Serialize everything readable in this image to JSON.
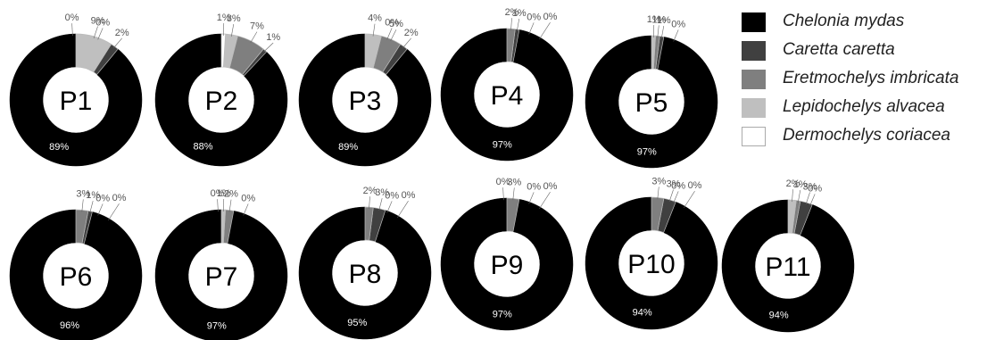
{
  "chart_data": {
    "type": "pie",
    "series": [
      {
        "name": "Chelonia mydas",
        "color": "#000000"
      },
      {
        "name": "Caretta caretta",
        "color": "#404040"
      },
      {
        "name": "Eretmochelys imbricata",
        "color": "#7f7f7f"
      },
      {
        "name": "Lepidochelys alvacea",
        "color": "#bfbfbf"
      },
      {
        "name": "Dermochelys coriacea",
        "color": "#ffffff"
      }
    ],
    "charts": [
      {
        "label": "P1",
        "values": [
          89,
          2,
          0,
          9,
          0
        ],
        "labels": [
          "89%",
          "2%",
          "0%",
          "9%",
          "0%"
        ]
      },
      {
        "label": "P2",
        "values": [
          88,
          1,
          7,
          3,
          1
        ],
        "labels": [
          "88%",
          "1%",
          "7%",
          "3%",
          "1%"
        ]
      },
      {
        "label": "P3",
        "values": [
          89,
          2,
          5,
          4,
          0
        ],
        "labels": [
          "89%",
          "2%",
          "5%",
          "4%",
          "0%"
        ]
      },
      {
        "label": "P4",
        "values": [
          97,
          1,
          2,
          0,
          0
        ],
        "labels": [
          "97%",
          "1%",
          "2%",
          "0%",
          "0%"
        ]
      },
      {
        "label": "P5",
        "values": [
          97,
          1,
          1,
          1,
          0
        ],
        "labels": [
          "97%",
          "1%",
          "1%",
          "1%",
          "0%"
        ]
      },
      {
        "label": "P6",
        "values": [
          96,
          1,
          3,
          0,
          0
        ],
        "labels": [
          "96%",
          "1%",
          "3%",
          "0%",
          "0%"
        ]
      },
      {
        "label": "P7",
        "values": [
          97,
          0,
          2,
          1,
          0
        ],
        "labels": [
          "97%",
          "0%",
          "2%",
          "1%",
          "0%"
        ]
      },
      {
        "label": "P8",
        "values": [
          95,
          3,
          2,
          0,
          0
        ],
        "labels": [
          "95%",
          "3%",
          "2%",
          "0%",
          "0%"
        ]
      },
      {
        "label": "P9",
        "values": [
          97,
          0,
          3,
          0,
          0
        ],
        "labels": [
          "97%",
          "0%",
          "3%",
          "0%",
          "0%"
        ]
      },
      {
        "label": "P10",
        "values": [
          94,
          3,
          3,
          0,
          0
        ],
        "labels": [
          "94%",
          "3%",
          "3%",
          "0%",
          "0%"
        ]
      },
      {
        "label": "P11",
        "values": [
          94,
          3,
          1,
          2,
          0
        ],
        "labels": [
          "94%",
          "3%",
          "1%",
          "2%",
          "0%"
        ]
      }
    ]
  }
}
